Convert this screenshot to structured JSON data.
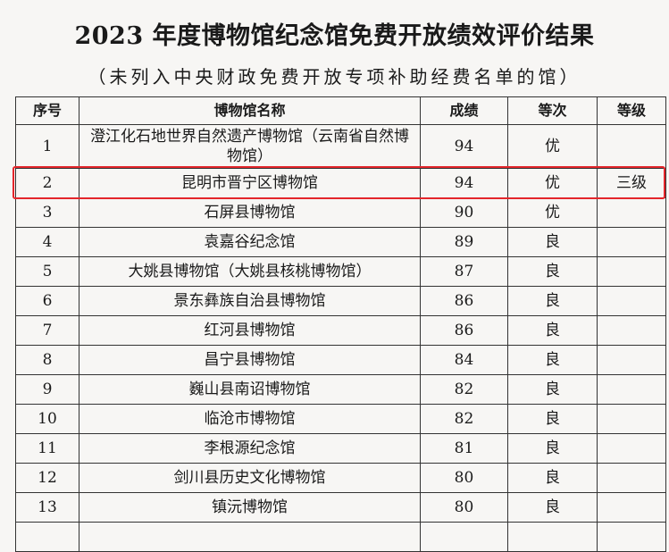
{
  "title": "2023 年度博物馆纪念馆免费开放绩效评价结果",
  "subtitle": "（未列入中央财政免费开放专项补助经费名单的馆）",
  "highlight_color": "#e4262b",
  "table": {
    "headers": [
      "序号",
      "博物馆名称",
      "成绩",
      "等次",
      "等级"
    ],
    "rows": [
      {
        "no": "1",
        "name": "澄江化石地世界自然遗产博物馆（云南省自然博物馆）",
        "score": "94",
        "rank": "优",
        "level": ""
      },
      {
        "no": "2",
        "name": "昆明市晋宁区博物馆",
        "score": "94",
        "rank": "优",
        "level": "三级"
      },
      {
        "no": "3",
        "name": "石屏县博物馆",
        "score": "90",
        "rank": "优",
        "level": ""
      },
      {
        "no": "4",
        "name": "袁嘉谷纪念馆",
        "score": "89",
        "rank": "良",
        "level": ""
      },
      {
        "no": "5",
        "name": "大姚县博物馆（大姚县核桃博物馆）",
        "score": "87",
        "rank": "良",
        "level": ""
      },
      {
        "no": "6",
        "name": "景东彝族自治县博物馆",
        "score": "86",
        "rank": "良",
        "level": ""
      },
      {
        "no": "7",
        "name": "红河县博物馆",
        "score": "86",
        "rank": "良",
        "level": ""
      },
      {
        "no": "8",
        "name": "昌宁县博物馆",
        "score": "84",
        "rank": "良",
        "level": ""
      },
      {
        "no": "9",
        "name": "巍山县南诏博物馆",
        "score": "82",
        "rank": "良",
        "level": ""
      },
      {
        "no": "10",
        "name": "临沧市博物馆",
        "score": "82",
        "rank": "良",
        "level": ""
      },
      {
        "no": "11",
        "name": "李根源纪念馆",
        "score": "81",
        "rank": "良",
        "level": ""
      },
      {
        "no": "12",
        "name": "剑川县历史文化博物馆",
        "score": "80",
        "rank": "良",
        "level": ""
      },
      {
        "no": "13",
        "name": "镇沅博物馆",
        "score": "80",
        "rank": "良",
        "level": ""
      }
    ]
  }
}
